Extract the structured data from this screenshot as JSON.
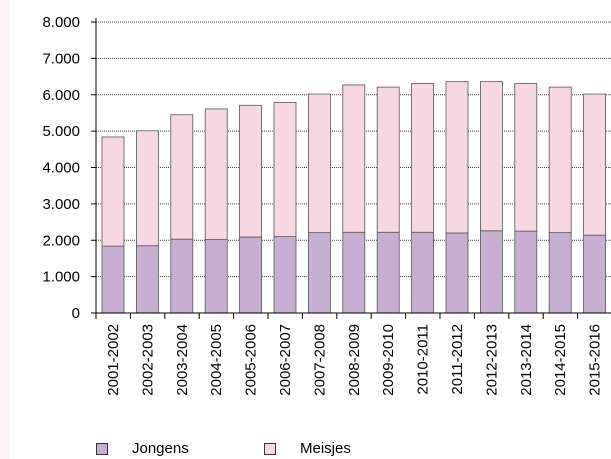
{
  "chart_data": {
    "type": "bar",
    "stacked": true,
    "categories": [
      "2001-2002",
      "2002-2003",
      "2003-2004",
      "2004-2005",
      "2005-2006",
      "2006-2007",
      "2007-2008",
      "2008-2009",
      "2009-2010",
      "2010-2011",
      "2011-2012",
      "2012-2013",
      "2013-2014",
      "2014-2015",
      "2015-2016"
    ],
    "series": [
      {
        "name": "Jongens",
        "color": "#c8aed2",
        "values": [
          1840,
          1850,
          2030,
          2020,
          2090,
          2100,
          2210,
          2220,
          2220,
          2220,
          2200,
          2260,
          2250,
          2210,
          2140
        ]
      },
      {
        "name": "Meisjes",
        "color": "#f9d7e2",
        "values": [
          3000,
          3160,
          3420,
          3590,
          3620,
          3690,
          3810,
          4050,
          3990,
          4090,
          4160,
          4100,
          4060,
          4000,
          3880
        ]
      }
    ],
    "ylim": [
      0,
      8000
    ],
    "yticks": [
      "0",
      "1.000",
      "2.000",
      "3.000",
      "4.000",
      "5.000",
      "6.000",
      "7.000",
      "8.000"
    ],
    "grid": true,
    "legend_position": "bottom-left"
  }
}
